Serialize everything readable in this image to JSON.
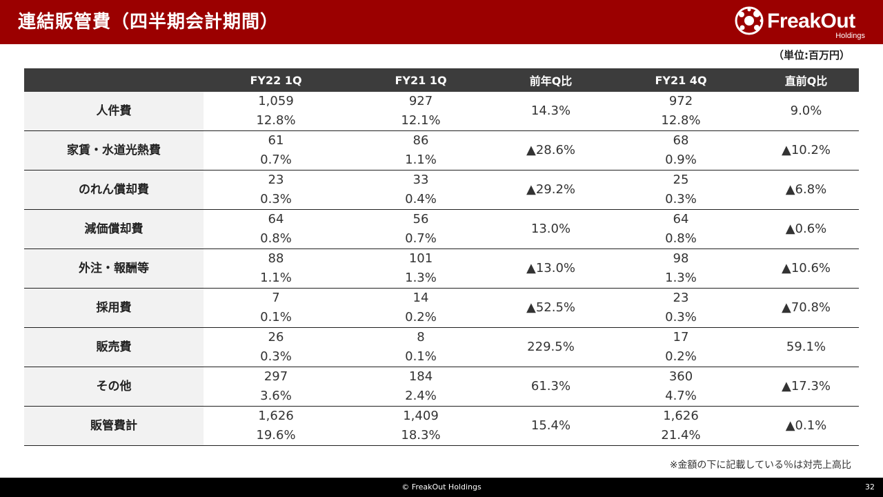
{
  "header": {
    "title": "連結販管費（四半期会計期間）",
    "logo_text": "FreakOut",
    "logo_sub": "Holdings"
  },
  "unit_label": "（単位:百万円）",
  "table": {
    "columns": [
      "",
      "FY22 1Q",
      "FY21 1Q",
      "前年Q比",
      "FY21 4Q",
      "直前Q比"
    ],
    "rows": [
      {
        "label": "人件費",
        "fy22_1q": {
          "amount": "1,059",
          "ratio": "12.8%"
        },
        "fy21_1q": {
          "amount": "927",
          "ratio": "12.1%"
        },
        "yoy": "14.3%",
        "fy21_4q": {
          "amount": "972",
          "ratio": "12.8%"
        },
        "qoq": "9.0%"
      },
      {
        "label": "家賃・水道光熱費",
        "fy22_1q": {
          "amount": "61",
          "ratio": "0.7%"
        },
        "fy21_1q": {
          "amount": "86",
          "ratio": "1.1%"
        },
        "yoy": "▲28.6%",
        "fy21_4q": {
          "amount": "68",
          "ratio": "0.9%"
        },
        "qoq": "▲10.2%"
      },
      {
        "label": "のれん償却費",
        "fy22_1q": {
          "amount": "23",
          "ratio": "0.3%"
        },
        "fy21_1q": {
          "amount": "33",
          "ratio": "0.4%"
        },
        "yoy": "▲29.2%",
        "fy21_4q": {
          "amount": "25",
          "ratio": "0.3%"
        },
        "qoq": "▲6.8%"
      },
      {
        "label": "減価償却費",
        "fy22_1q": {
          "amount": "64",
          "ratio": "0.8%"
        },
        "fy21_1q": {
          "amount": "56",
          "ratio": "0.7%"
        },
        "yoy": "13.0%",
        "fy21_4q": {
          "amount": "64",
          "ratio": "0.8%"
        },
        "qoq": "▲0.6%"
      },
      {
        "label": "外注・報酬等",
        "fy22_1q": {
          "amount": "88",
          "ratio": "1.1%"
        },
        "fy21_1q": {
          "amount": "101",
          "ratio": "1.3%"
        },
        "yoy": "▲13.0%",
        "fy21_4q": {
          "amount": "98",
          "ratio": "1.3%"
        },
        "qoq": "▲10.6%"
      },
      {
        "label": "採用費",
        "fy22_1q": {
          "amount": "7",
          "ratio": "0.1%"
        },
        "fy21_1q": {
          "amount": "14",
          "ratio": "0.2%"
        },
        "yoy": "▲52.5%",
        "fy21_4q": {
          "amount": "23",
          "ratio": "0.3%"
        },
        "qoq": "▲70.8%"
      },
      {
        "label": "販売費",
        "fy22_1q": {
          "amount": "26",
          "ratio": "0.3%"
        },
        "fy21_1q": {
          "amount": "8",
          "ratio": "0.1%"
        },
        "yoy": "229.5%",
        "fy21_4q": {
          "amount": "17",
          "ratio": "0.2%"
        },
        "qoq": "59.1%"
      },
      {
        "label": "その他",
        "fy22_1q": {
          "amount": "297",
          "ratio": "3.6%"
        },
        "fy21_1q": {
          "amount": "184",
          "ratio": "2.4%"
        },
        "yoy": "61.3%",
        "fy21_4q": {
          "amount": "360",
          "ratio": "4.7%"
        },
        "qoq": "▲17.3%"
      },
      {
        "label": "販管費計",
        "fy22_1q": {
          "amount": "1,626",
          "ratio": "19.6%"
        },
        "fy21_1q": {
          "amount": "1,409",
          "ratio": "18.3%"
        },
        "yoy": "15.4%",
        "fy21_4q": {
          "amount": "1,626",
          "ratio": "21.4%"
        },
        "qoq": "▲0.1%"
      }
    ]
  },
  "note": "※金額の下に記載している％は対売上高比",
  "footer": {
    "copyright": "© FreakOut Holdings",
    "page_number": "32"
  },
  "colors": {
    "header_bg": "#9b0000",
    "table_header_bg": "#3c3c3c",
    "row_label_bg": "#f2f2f2",
    "footer_bg": "#000000"
  }
}
